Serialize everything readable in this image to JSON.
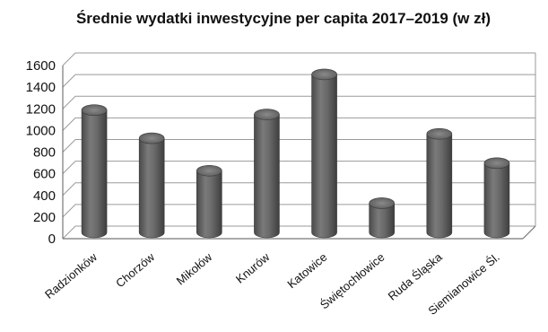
{
  "chart_data": {
    "type": "bar",
    "title": "Średnie wydatki inwestycyjne per capita 2017–2019 (w zł)",
    "categories": [
      "Radzionków",
      "Chorzów",
      "Mikołów",
      "Knurów",
      "Katowice",
      "Świętochłowice",
      "Ruda Śląska",
      "Siemianowice Śl."
    ],
    "values": [
      1130,
      870,
      570,
      1090,
      1460,
      270,
      910,
      640
    ],
    "ylim": [
      0,
      1600
    ],
    "yticks": [
      "0",
      "200",
      "400",
      "600",
      "800",
      "1000",
      "1200",
      "1400",
      "1600"
    ],
    "grid": true,
    "bar_style": "3d-cylinder",
    "bar_color": "#6b6b6b"
  }
}
